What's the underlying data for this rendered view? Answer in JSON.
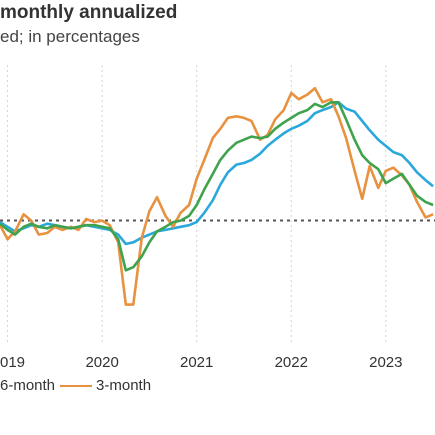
{
  "chart_data": {
    "type": "line",
    "title": "monthly annualized",
    "subtitle": "ed; in percentages",
    "x_tick_labels": [
      "019",
      "2020",
      "2021",
      "2022",
      "2023"
    ],
    "xlim": [
      2018.92,
      2023.52
    ],
    "ylim": [
      -6,
      12
    ],
    "grid": true,
    "reference_line": {
      "y": 2.0,
      "style": "dotted"
    },
    "series": [
      {
        "name": "6-month",
        "color": "#2aa8dc",
        "x": [
          2018.92,
          2019.0,
          2019.08,
          2019.17,
          2019.25,
          2019.33,
          2019.42,
          2019.5,
          2019.58,
          2019.67,
          2019.75,
          2019.83,
          2019.92,
          2020.0,
          2020.08,
          2020.17,
          2020.25,
          2020.33,
          2020.42,
          2020.5,
          2020.58,
          2020.67,
          2020.75,
          2020.83,
          2020.92,
          2021.0,
          2021.08,
          2021.17,
          2021.25,
          2021.33,
          2021.42,
          2021.5,
          2021.58,
          2021.67,
          2021.75,
          2021.83,
          2021.92,
          2022.0,
          2022.08,
          2022.17,
          2022.25,
          2022.33,
          2022.42,
          2022.5,
          2022.58,
          2022.67,
          2022.75,
          2022.83,
          2022.92,
          2023.0,
          2023.08,
          2023.17,
          2023.25,
          2023.33,
          2023.42,
          2023.5
        ],
        "y": [
          1.9,
          1.6,
          1.3,
          1.5,
          1.7,
          1.6,
          1.8,
          1.7,
          1.6,
          1.5,
          1.6,
          1.7,
          1.6,
          1.5,
          1.4,
          1.1,
          0.5,
          0.6,
          0.9,
          1.1,
          1.3,
          1.4,
          1.5,
          1.6,
          1.7,
          1.9,
          2.5,
          3.3,
          4.3,
          5.1,
          5.6,
          5.7,
          5.9,
          6.3,
          6.8,
          7.2,
          7.6,
          7.9,
          8.1,
          8.4,
          8.9,
          9.1,
          9.3,
          9.6,
          9.2,
          9.0,
          8.4,
          7.8,
          7.2,
          6.8,
          6.4,
          6.2,
          5.7,
          5.1,
          4.6,
          4.2
        ]
      },
      {
        "name": "3-month",
        "color": "#e8913f",
        "x": [
          2018.92,
          2019.0,
          2019.08,
          2019.17,
          2019.25,
          2019.33,
          2019.42,
          2019.5,
          2019.58,
          2019.67,
          2019.75,
          2019.83,
          2019.92,
          2020.0,
          2020.08,
          2020.17,
          2020.25,
          2020.33,
          2020.42,
          2020.5,
          2020.58,
          2020.67,
          2020.75,
          2020.83,
          2020.92,
          2021.0,
          2021.08,
          2021.17,
          2021.25,
          2021.33,
          2021.42,
          2021.5,
          2021.58,
          2021.67,
          2021.75,
          2021.83,
          2021.92,
          2022.0,
          2022.08,
          2022.17,
          2022.25,
          2022.33,
          2022.42,
          2022.5,
          2022.58,
          2022.67,
          2022.75,
          2022.83,
          2022.92,
          2023.0,
          2023.08,
          2023.17,
          2023.25,
          2023.33,
          2023.42,
          2023.5
        ],
        "y": [
          1.7,
          0.8,
          1.3,
          2.4,
          2.0,
          1.1,
          1.2,
          1.6,
          1.4,
          1.6,
          1.4,
          2.1,
          1.9,
          2.0,
          1.7,
          0.6,
          -3.4,
          -3.4,
          0.9,
          2.6,
          3.5,
          2.3,
          1.6,
          2.5,
          3.0,
          4.7,
          5.9,
          7.3,
          7.9,
          8.6,
          8.7,
          8.6,
          8.4,
          7.2,
          7.5,
          8.5,
          9.1,
          10.2,
          9.8,
          10.1,
          10.5,
          9.6,
          9.8,
          8.7,
          7.3,
          5.2,
          3.4,
          5.5,
          4.1,
          5.2,
          5.4,
          4.9,
          4.3,
          3.2,
          2.2,
          2.4
        ]
      },
      {
        "name": "",
        "color": "#3fa34d",
        "x": [
          2018.92,
          2019.0,
          2019.08,
          2019.17,
          2019.25,
          2019.33,
          2019.42,
          2019.5,
          2019.58,
          2019.67,
          2019.75,
          2019.83,
          2019.92,
          2020.0,
          2020.08,
          2020.17,
          2020.25,
          2020.33,
          2020.42,
          2020.5,
          2020.58,
          2020.67,
          2020.75,
          2020.83,
          2020.92,
          2021.0,
          2021.08,
          2021.17,
          2021.25,
          2021.33,
          2021.42,
          2021.5,
          2021.58,
          2021.67,
          2021.75,
          2021.83,
          2021.92,
          2022.0,
          2022.08,
          2022.17,
          2022.25,
          2022.33,
          2022.42,
          2022.5,
          2022.58,
          2022.67,
          2022.75,
          2022.83,
          2022.92,
          2023.0,
          2023.08,
          2023.17,
          2023.25,
          2023.33,
          2023.42,
          2023.5
        ],
        "y": [
          1.8,
          1.4,
          1.1,
          1.6,
          1.8,
          1.6,
          1.5,
          1.7,
          1.6,
          1.5,
          1.6,
          1.7,
          1.7,
          1.6,
          1.5,
          0.8,
          -1.2,
          -1.0,
          -0.3,
          0.6,
          1.3,
          1.6,
          1.9,
          2.0,
          2.3,
          3.0,
          4.0,
          5.0,
          5.9,
          6.5,
          7.0,
          7.2,
          7.4,
          7.3,
          7.4,
          7.9,
          8.3,
          8.6,
          8.9,
          9.1,
          9.5,
          9.3,
          9.6,
          9.6,
          8.5,
          7.2,
          6.2,
          5.7,
          5.3,
          4.4,
          4.7,
          5.0,
          4.3,
          3.6,
          3.2,
          3.0
        ]
      }
    ]
  }
}
